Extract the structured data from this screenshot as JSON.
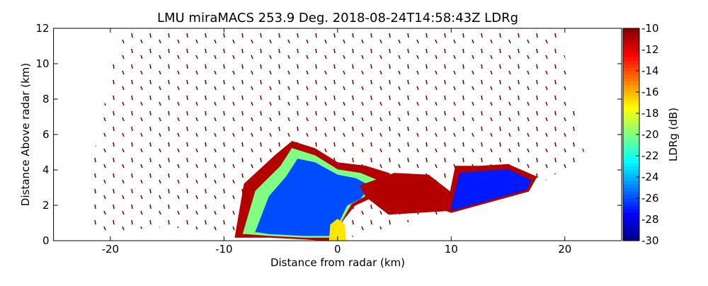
{
  "chart_data": {
    "type": "heatmap",
    "title": "LMU miraMACS 253.9 Deg. 2018-08-24T14:58:43Z  LDRg",
    "xlabel": "Distance from radar (km)",
    "ylabel": "Distance Above radar  (km)",
    "xlim": [
      -25,
      25
    ],
    "ylim": [
      0,
      12
    ],
    "xticks": [
      -20,
      -10,
      0,
      10,
      20
    ],
    "yticks": [
      0,
      2,
      4,
      6,
      8,
      10,
      12
    ],
    "colormap": "jet",
    "colorbar": {
      "label": "LDRg (dB)",
      "lim": [
        -30,
        -10
      ],
      "ticks": [
        -30,
        -28,
        -26,
        -24,
        -22,
        -20,
        -18,
        -16,
        -14,
        -12,
        -10
      ]
    },
    "regions": [
      {
        "x": [
          -9,
          -8.2,
          -5.5,
          -4,
          -2,
          0,
          2.5,
          4.5,
          3.5,
          1.5,
          0.5,
          -0.5,
          -3,
          -6,
          -8.5
        ],
        "y": [
          0.2,
          3.2,
          4.8,
          5.6,
          5.2,
          4.4,
          4.2,
          3.8,
          2.6,
          2.0,
          1.2,
          0.0,
          0.1,
          0.2,
          0.2
        ],
        "value": -11
      },
      {
        "x": [
          -8.3,
          -7.2,
          -5,
          -4,
          -2,
          0,
          2,
          3.5,
          2.6,
          1.2,
          0.4,
          -0.3,
          -3,
          -6,
          -8
        ],
        "y": [
          0.4,
          2.8,
          4.2,
          5.2,
          4.8,
          4.0,
          3.8,
          3.4,
          2.6,
          2.1,
          1.2,
          0.2,
          0.2,
          0.3,
          0.4
        ],
        "value": -20
      },
      {
        "x": [
          -7.2,
          -6,
          -4.5,
          -3.5,
          -2,
          0,
          1.6,
          2.8,
          2.0,
          0.8,
          0.2,
          -0.3,
          -3,
          -6,
          -7
        ],
        "y": [
          0.5,
          2.5,
          3.6,
          4.6,
          4.4,
          3.7,
          3.5,
          3.1,
          2.4,
          2.0,
          1.2,
          0.3,
          0.3,
          0.4,
          0.5
        ],
        "value": -26
      },
      {
        "x": [
          2,
          5,
          8,
          10,
          9.5,
          4.5,
          2.5
        ],
        "y": [
          3.1,
          3.8,
          3.7,
          2.7,
          1.7,
          1.5,
          2.5
        ],
        "value": -11
      },
      {
        "x": [
          9.6,
          10.4,
          12.5,
          15,
          17.5,
          16.8,
          10
        ],
        "y": [
          1.7,
          4.2,
          4.2,
          4.3,
          3.6,
          2.8,
          1.6
        ],
        "value": -11
      },
      {
        "x": [
          10,
          10.8,
          12.5,
          15,
          17,
          16.6,
          10.2
        ],
        "y": [
          1.8,
          3.8,
          3.9,
          4.0,
          3.4,
          2.9,
          1.75
        ],
        "value": -27
      },
      {
        "x": [
          -0.7,
          0.7,
          0.6,
          0,
          -0.6
        ],
        "y": [
          0.05,
          0.05,
          0.9,
          1.2,
          0.9
        ],
        "value": -17
      }
    ]
  }
}
